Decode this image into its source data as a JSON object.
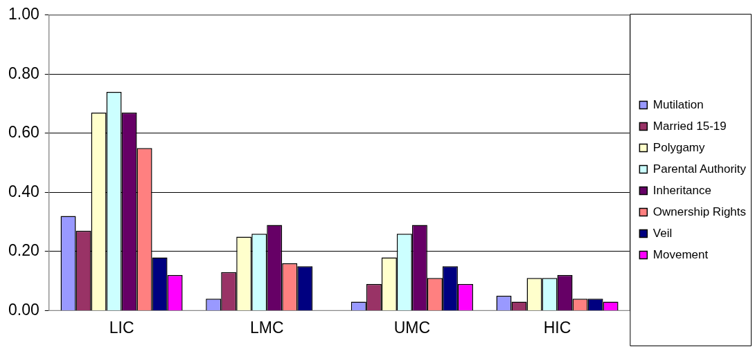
{
  "chart_data": {
    "type": "bar",
    "categories": [
      "LIC",
      "LMC",
      "UMC",
      "HIC"
    ],
    "series": [
      {
        "name": "Mutilation",
        "color": "#9999ff",
        "values": [
          0.32,
          0.04,
          0.03,
          0.05
        ]
      },
      {
        "name": "Married 15-19",
        "color": "#993366",
        "values": [
          0.27,
          0.13,
          0.09,
          0.03
        ]
      },
      {
        "name": "Polygamy",
        "color": "#ffffcc",
        "values": [
          0.67,
          0.25,
          0.18,
          0.11
        ]
      },
      {
        "name": "Parental Authority",
        "color": "#ccffff",
        "values": [
          0.74,
          0.26,
          0.26,
          0.11
        ]
      },
      {
        "name": "Inheritance",
        "color": "#660066",
        "values": [
          0.67,
          0.29,
          0.29,
          0.12
        ]
      },
      {
        "name": "Ownership Rights",
        "color": "#ff8080",
        "values": [
          0.55,
          0.16,
          0.11,
          0.04
        ]
      },
      {
        "name": "Veil",
        "color": "#000080",
        "values": [
          0.18,
          0.15,
          0.15,
          0.04
        ]
      },
      {
        "name": "Movement",
        "color": "#ff00ff",
        "values": [
          0.12,
          null,
          0.09,
          0.03
        ]
      }
    ],
    "ylim": [
      0,
      1
    ],
    "yticks": [
      {
        "value": 0,
        "label": "0.00"
      },
      {
        "value": 0.2,
        "label": "0.20"
      },
      {
        "value": 0.4,
        "label": "0.40"
      },
      {
        "value": 0.6,
        "label": "0.60"
      },
      {
        "value": 0.8,
        "label": "0.80"
      },
      {
        "value": 1,
        "label": "1.00"
      }
    ],
    "grid": "y",
    "legend": "right"
  }
}
